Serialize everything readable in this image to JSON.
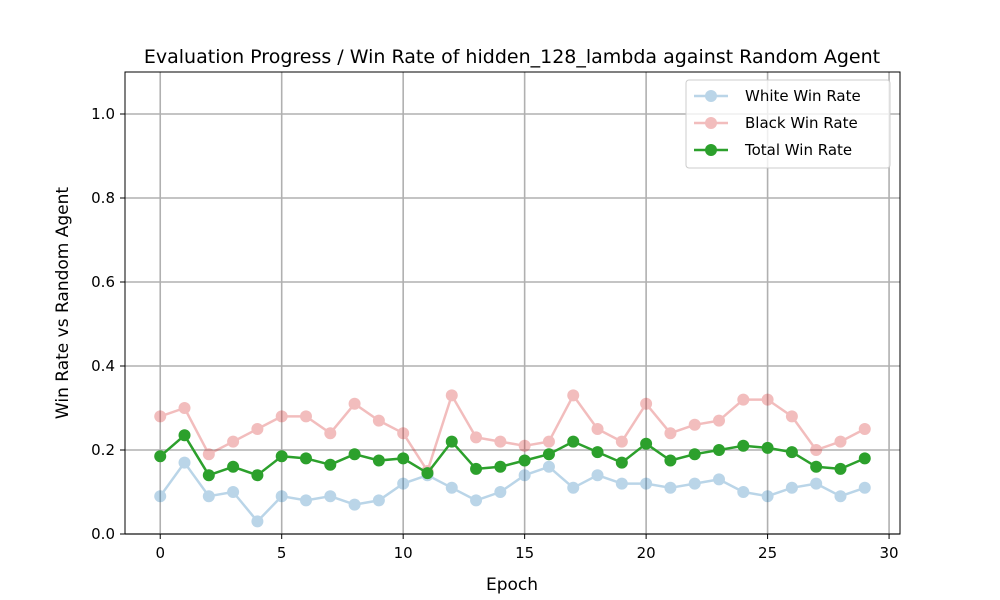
{
  "chart_data": {
    "type": "line",
    "title": "Evaluation Progress / Win Rate of hidden_128_lambda against Random Agent",
    "xlabel": "Epoch",
    "ylabel": "Win Rate vs Random Agent",
    "xlim": [
      -1.45,
      30.45
    ],
    "ylim": [
      0,
      1.1
    ],
    "xticks": [
      0,
      5,
      10,
      15,
      20,
      25,
      30
    ],
    "xtick_labels": [
      "0",
      "5",
      "10",
      "15",
      "20",
      "25",
      "30"
    ],
    "yticks": [
      0.0,
      0.2,
      0.4,
      0.6,
      0.8,
      1.0
    ],
    "ytick_labels": [
      "0.0",
      "0.2",
      "0.4",
      "0.6",
      "0.8",
      "1.0"
    ],
    "grid": true,
    "legend_position": "top-right",
    "x": [
      0,
      1,
      2,
      3,
      4,
      5,
      6,
      7,
      8,
      9,
      10,
      11,
      12,
      13,
      14,
      15,
      16,
      17,
      18,
      19,
      20,
      21,
      22,
      23,
      24,
      25,
      26,
      27,
      28,
      29
    ],
    "series": [
      {
        "name": "White Win Rate",
        "color": "#1f77b4",
        "opacity": 0.3,
        "values": [
          0.09,
          0.17,
          0.09,
          0.1,
          0.03,
          0.09,
          0.08,
          0.09,
          0.07,
          0.08,
          0.12,
          0.14,
          0.11,
          0.08,
          0.1,
          0.14,
          0.16,
          0.11,
          0.14,
          0.12,
          0.12,
          0.11,
          0.12,
          0.13,
          0.1,
          0.09,
          0.11,
          0.12,
          0.09,
          0.11
        ]
      },
      {
        "name": "Black Win Rate",
        "color": "#d62728",
        "opacity": 0.3,
        "values": [
          0.28,
          0.3,
          0.19,
          0.22,
          0.25,
          0.28,
          0.28,
          0.24,
          0.31,
          0.27,
          0.24,
          0.15,
          0.33,
          0.23,
          0.22,
          0.21,
          0.22,
          0.33,
          0.25,
          0.22,
          0.31,
          0.24,
          0.26,
          0.27,
          0.32,
          0.32,
          0.28,
          0.2,
          0.22,
          0.25
        ]
      },
      {
        "name": "Total Win Rate",
        "color": "#2ca02c",
        "opacity": 1.0,
        "values": [
          0.185,
          0.235,
          0.14,
          0.16,
          0.14,
          0.185,
          0.18,
          0.165,
          0.19,
          0.175,
          0.18,
          0.145,
          0.22,
          0.155,
          0.16,
          0.175,
          0.19,
          0.22,
          0.195,
          0.17,
          0.215,
          0.175,
          0.19,
          0.2,
          0.21,
          0.205,
          0.195,
          0.16,
          0.155,
          0.18
        ]
      }
    ]
  }
}
